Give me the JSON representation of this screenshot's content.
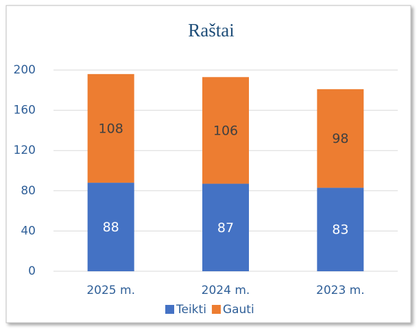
{
  "chart_data": {
    "type": "stacked_bar",
    "title": "Raštai",
    "categories": [
      "2025 m.",
      "2024 m.",
      "2023 m."
    ],
    "series": [
      {
        "name": "Teikti",
        "color": "#4472c4",
        "values": [
          88,
          87,
          83
        ]
      },
      {
        "name": "Gauti",
        "color": "#ed7d31",
        "values": [
          108,
          106,
          98
        ]
      }
    ],
    "ylim": [
      0,
      200
    ],
    "yticks": [
      0,
      40,
      80,
      120,
      160,
      200
    ],
    "grid": true,
    "legend": "bottom"
  }
}
